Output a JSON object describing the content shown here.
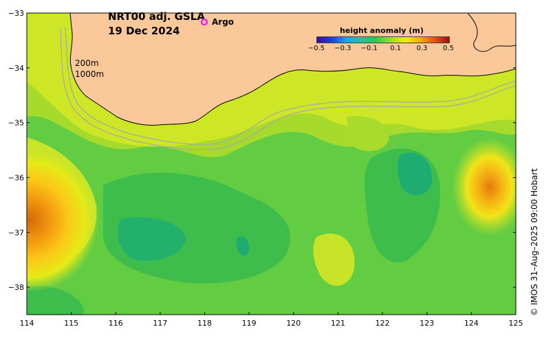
{
  "title": {
    "product": "NRT00 adj. GSLA",
    "date": "19 Dec 2024"
  },
  "legend": {
    "argo_label": "Argo",
    "argo_color": "#ff00ff"
  },
  "colorbar": {
    "title": "height anomaly (m)",
    "ticks": [
      "−0.5",
      "−0.3",
      "−0.1",
      "0.1",
      "0.3",
      "0.5"
    ],
    "min": -0.5,
    "max": 0.5
  },
  "isobaths": {
    "shallow": "200m",
    "deep": "1000m"
  },
  "axes": {
    "x_ticks": [
      "114",
      "115",
      "116",
      "117",
      "118",
      "119",
      "120",
      "121",
      "122",
      "123",
      "124",
      "125"
    ],
    "y_ticks": [
      "−33",
      "−34",
      "−35",
      "−36",
      "−37",
      "−38"
    ],
    "lon_range": [
      114,
      125
    ],
    "lat_range": [
      -38.5,
      -33
    ]
  },
  "credit": "© IMOS 31–Aug–2025 09:00 Hobart",
  "colors": {
    "land": "#fbc89a",
    "anomaly_low": "#12b06a",
    "anomaly_mid": "#40c848",
    "anomaly_high": "#e07010",
    "isobath": "#a8a8a8"
  }
}
